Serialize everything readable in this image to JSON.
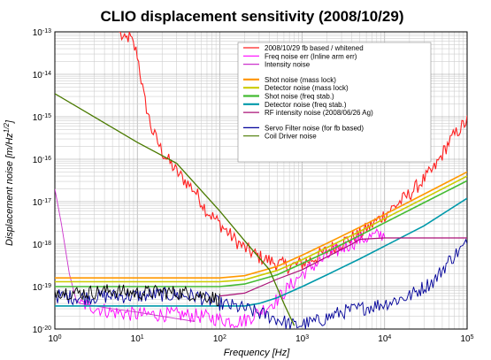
{
  "chart_data": {
    "type": "line",
    "title": "CLIO displacement sensitivity (2008/10/29)",
    "xlabel": "Frequency [Hz]",
    "ylabel": "Displacement noise [m/Hz",
    "ylabel_exp": "1/2",
    "ylabel_close": "]",
    "xscale": "log",
    "yscale": "log",
    "xlim": [
      1,
      100000
    ],
    "ylim": [
      1e-20,
      1e-13
    ],
    "grid": true,
    "legend_position": "upper-right",
    "x_ticks": [
      {
        "base": "10",
        "exp": "0",
        "value": 1
      },
      {
        "base": "10",
        "exp": "1",
        "value": 10
      },
      {
        "base": "10",
        "exp": "2",
        "value": 100
      },
      {
        "base": "10",
        "exp": "3",
        "value": 1000
      },
      {
        "base": "10",
        "exp": "4",
        "value": 10000
      },
      {
        "base": "10",
        "exp": "5",
        "value": 100000
      }
    ],
    "y_ticks": [
      {
        "base": "10",
        "exp": "-13",
        "value": 1e-13
      },
      {
        "base": "10",
        "exp": "-14",
        "value": 1e-14
      },
      {
        "base": "10",
        "exp": "-15",
        "value": 1e-15
      },
      {
        "base": "10",
        "exp": "-16",
        "value": 1e-16
      },
      {
        "base": "10",
        "exp": "-17",
        "value": 1e-17
      },
      {
        "base": "10",
        "exp": "-18",
        "value": 1e-18
      },
      {
        "base": "10",
        "exp": "-19",
        "value": 1e-19
      },
      {
        "base": "10",
        "exp": "-20",
        "value": 1e-20
      }
    ],
    "series": [
      {
        "name": "2008/10/29 fb based / whitened",
        "color": "#ff2020",
        "width": 1.1,
        "noisy": true,
        "points": [
          [
            6,
            1e-13
          ],
          [
            7,
            6e-14
          ],
          [
            8,
            8e-14
          ],
          [
            10,
            3e-14
          ],
          [
            12,
            3e-15
          ],
          [
            15,
            5e-16
          ],
          [
            20,
            1.5e-16
          ],
          [
            30,
            5e-17
          ],
          [
            50,
            1.8e-17
          ],
          [
            70,
            6e-18
          ],
          [
            100,
            3e-18
          ],
          [
            150,
            1.3e-18
          ],
          [
            200,
            8e-19
          ],
          [
            300,
            5e-19
          ],
          [
            500,
            3.5e-19
          ],
          [
            700,
            3e-19
          ],
          [
            1000,
            3.5e-19
          ],
          [
            1500,
            5e-19
          ],
          [
            2000,
            7e-19
          ],
          [
            3000,
            1.1e-18
          ],
          [
            5000,
            1.7e-18
          ],
          [
            10000,
            5e-18
          ],
          [
            20000,
            1.5e-17
          ],
          [
            40000,
            6e-17
          ],
          [
            60000,
            2.5e-16
          ],
          [
            80000,
            5e-16
          ],
          [
            100000,
            8e-16
          ]
        ]
      },
      {
        "name": "Freq noise err (Inline arm err)",
        "color": "#ff00ff",
        "width": 0.9,
        "noisy": true,
        "points": [
          [
            2,
            4e-20
          ],
          [
            5,
            2.5e-20
          ],
          [
            10,
            2.2e-20
          ],
          [
            30,
            2.2e-20
          ],
          [
            60,
            2e-20
          ],
          [
            100,
            1.7e-20
          ],
          [
            150,
            1.5e-20
          ],
          [
            200,
            1.6e-20
          ],
          [
            300,
            2.5e-20
          ],
          [
            500,
            5e-20
          ],
          [
            700,
            1e-19
          ],
          [
            1000,
            2e-19
          ],
          [
            1500,
            3.5e-19
          ],
          [
            2000,
            5e-19
          ],
          [
            3000,
            8e-19
          ],
          [
            5000,
            1.3e-18
          ],
          [
            8000,
            1.6e-18
          ],
          [
            10000,
            1.7e-18
          ]
        ]
      },
      {
        "name": "Intensity noise",
        "color": "#cc33cc",
        "width": 0.9,
        "noisy": false,
        "points": [
          [
            1,
            2e-17
          ],
          [
            1.2,
            3e-18
          ],
          [
            1.5,
            2e-19
          ],
          [
            1.8,
            5e-20
          ],
          [
            2,
            4e-20
          ],
          [
            5,
            3e-20
          ],
          [
            10,
            2.5e-20
          ],
          [
            20,
            2e-20
          ],
          [
            50,
            1.5e-20
          ]
        ]
      },
      {
        "name": "Shot noise (mass lock)",
        "color": "#ff9900",
        "width": 1.6,
        "noisy": false,
        "points": [
          [
            1,
            1.6e-19
          ],
          [
            100,
            1.6e-19
          ],
          [
            200,
            1.8e-19
          ],
          [
            500,
            3e-19
          ],
          [
            1000,
            5.5e-19
          ],
          [
            2000,
            1.05e-18
          ],
          [
            5000,
            2.5e-18
          ],
          [
            10000,
            5e-18
          ],
          [
            30000,
            1.5e-17
          ],
          [
            100000,
            5e-17
          ]
        ]
      },
      {
        "name": "Detector noise (mass lock)",
        "color": "#cccc00",
        "width": 1.6,
        "noisy": false,
        "points": [
          [
            1,
            1.3e-19
          ],
          [
            100,
            1.3e-19
          ],
          [
            200,
            1.45e-19
          ],
          [
            500,
            2.4e-19
          ],
          [
            1000,
            4.3e-19
          ],
          [
            2000,
            8.3e-19
          ],
          [
            5000,
            2e-18
          ],
          [
            10000,
            4e-18
          ],
          [
            30000,
            1.2e-17
          ],
          [
            100000,
            4e-17
          ]
        ]
      },
      {
        "name": "Shot noise (freq stab.)",
        "color": "#44bb33",
        "width": 1.6,
        "noisy": false,
        "points": [
          [
            1,
            1e-19
          ],
          [
            100,
            1e-19
          ],
          [
            200,
            1.15e-19
          ],
          [
            500,
            1.9e-19
          ],
          [
            1000,
            3.5e-19
          ],
          [
            2000,
            6.6e-19
          ],
          [
            5000,
            1.6e-18
          ],
          [
            10000,
            3.2e-18
          ],
          [
            30000,
            9.5e-18
          ],
          [
            100000,
            3.1e-17
          ]
        ]
      },
      {
        "name": "Detector noise (freq stab.)",
        "color": "#0099aa",
        "width": 1.6,
        "noisy": false,
        "points": [
          [
            1,
            3.5e-20
          ],
          [
            200,
            3.5e-20
          ],
          [
            300,
            4e-20
          ],
          [
            500,
            5.5e-20
          ],
          [
            1000,
            1e-19
          ],
          [
            2000,
            1.9e-19
          ],
          [
            5000,
            4.5e-19
          ],
          [
            10000,
            9e-19
          ],
          [
            30000,
            2.7e-18
          ],
          [
            100000,
            1.2e-17
          ]
        ]
      },
      {
        "name": "RF intensity noise (2008/06/26 Ag)",
        "color": "#aa1177",
        "width": 1.2,
        "noisy": false,
        "points": [
          [
            100,
            6e-20
          ],
          [
            200,
            7e-20
          ],
          [
            500,
            1.5e-19
          ],
          [
            1000,
            2.5e-19
          ],
          [
            2000,
            5e-19
          ],
          [
            4000,
            1e-18
          ],
          [
            5000,
            1.3e-18
          ],
          [
            10000,
            1.4e-18
          ],
          [
            100000,
            1.4e-18
          ]
        ]
      },
      {
        "name": "Servo Filter noise (for fb based)",
        "color": "#000099",
        "width": 0.9,
        "noisy": true,
        "points": [
          [
            1,
            6e-20
          ],
          [
            2,
            5.5e-20
          ],
          [
            5,
            6e-20
          ],
          [
            10,
            6e-20
          ],
          [
            20,
            6.5e-20
          ],
          [
            50,
            6e-20
          ],
          [
            100,
            4e-20
          ],
          [
            200,
            3e-20
          ],
          [
            400,
            2e-20
          ],
          [
            800,
            1.2e-20
          ],
          [
            1500,
            1.5e-20
          ],
          [
            3000,
            2.5e-20
          ],
          [
            5000,
            3e-20
          ],
          [
            10000,
            4e-20
          ],
          [
            20000,
            6e-20
          ],
          [
            40000,
            1.4e-19
          ],
          [
            60000,
            4e-19
          ],
          [
            80000,
            7e-19
          ],
          [
            100000,
            1e-18
          ]
        ]
      },
      {
        "name": "Coil Driver noise",
        "color": "#4a7a00",
        "width": 1.3,
        "noisy": false,
        "points": [
          [
            1,
            3.5e-15
          ],
          [
            10,
            2.5e-16
          ],
          [
            30,
            8e-17
          ],
          [
            100,
            6e-18
          ],
          [
            200,
            1.2e-18
          ],
          [
            400,
            2.5e-19
          ],
          [
            600,
            4e-20
          ],
          [
            800,
            1.2e-20
          ]
        ]
      }
    ],
    "black_trace": {
      "color": "#000000",
      "points": [
        [
          1,
          8e-20
        ],
        [
          2,
          7e-20
        ],
        [
          5,
          8e-20
        ],
        [
          10,
          7e-20
        ],
        [
          20,
          7.5e-20
        ],
        [
          40,
          7e-20
        ],
        [
          70,
          6e-20
        ],
        [
          100,
          5e-20
        ]
      ]
    },
    "legend_groups": [
      [
        0,
        1,
        2
      ],
      [
        3,
        4,
        5,
        6,
        7
      ],
      [
        8,
        9
      ]
    ]
  }
}
